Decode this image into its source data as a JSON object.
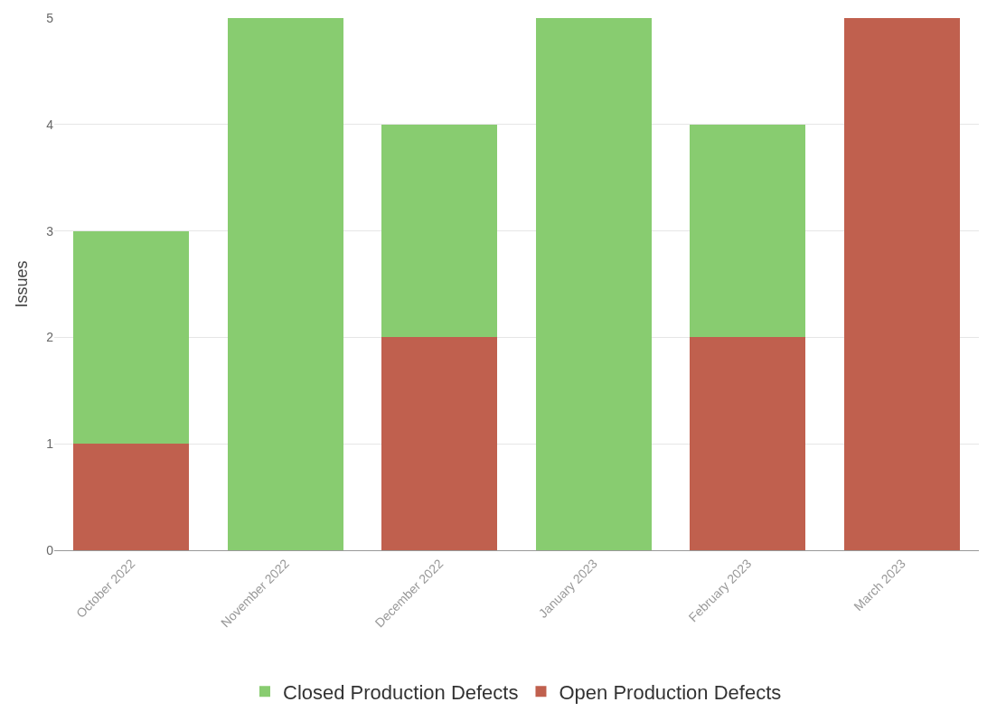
{
  "chart_data": {
    "type": "bar",
    "stacked": true,
    "ylabel": "Issues",
    "categories": [
      "October 2022",
      "November 2022",
      "December 2022",
      "January 2023",
      "February 2023",
      "March 2023"
    ],
    "series": [
      {
        "name": "Open Production Defects",
        "color": "#c0604e",
        "values": [
          1,
          0,
          2,
          0,
          2,
          5
        ]
      },
      {
        "name": "Closed Production Defects",
        "color": "#88cc70",
        "values": [
          2,
          5,
          2,
          5,
          2,
          0
        ]
      }
    ],
    "ylim": [
      0,
      5
    ],
    "yticks": [
      0,
      1,
      2,
      3,
      4,
      5
    ],
    "grid": "y",
    "legend": "bottom"
  }
}
